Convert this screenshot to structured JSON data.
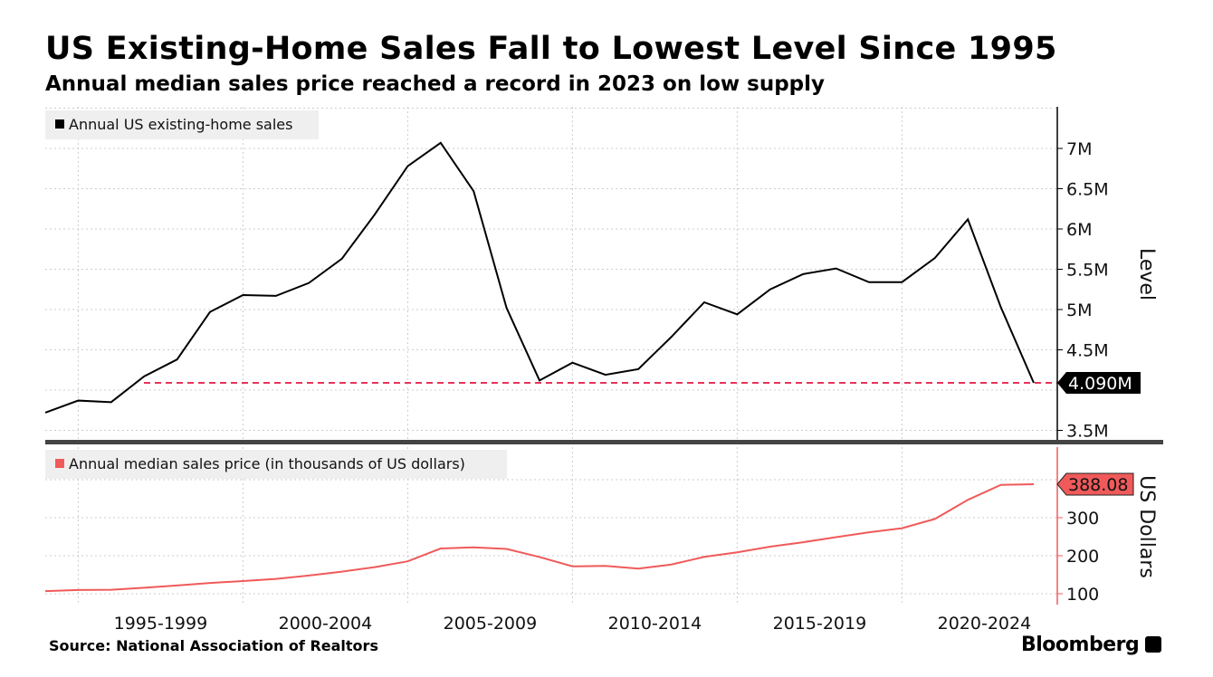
{
  "title": "US Existing-Home Sales Fall to Lowest Level Since 1995",
  "subtitle": "Annual median sales price reached a record in 2023 on low supply",
  "source": "Source: National Association of Realtors",
  "logo": "Bloomberg",
  "colors": {
    "sales": "#000000",
    "price": "#f05a5a",
    "ref": "#e8335a"
  },
  "chart_data": [
    {
      "type": "line",
      "legend": "Annual US existing-home sales",
      "ylabel": "Level",
      "ylim": [
        3.3,
        7.5
      ],
      "yticks": [
        "3.5M",
        "4.5M",
        "5M",
        "5.5M",
        "6M",
        "6.5M",
        "7M"
      ],
      "ytick_values": [
        3.5,
        4.5,
        5,
        5.5,
        6,
        6.5,
        7
      ],
      "last_label": "4.090M",
      "reference_line": 4.09,
      "x": [
        1993,
        1994,
        1995,
        1996,
        1997,
        1998,
        1999,
        2000,
        2001,
        2002,
        2003,
        2004,
        2005,
        2006,
        2007,
        2008,
        2009,
        2010,
        2011,
        2012,
        2013,
        2014,
        2015,
        2016,
        2017,
        2018,
        2019,
        2020,
        2021,
        2022,
        2023
      ],
      "values": [
        3.72,
        3.87,
        3.85,
        4.17,
        4.38,
        4.97,
        5.18,
        5.17,
        5.33,
        5.63,
        6.18,
        6.78,
        7.07,
        6.47,
        5.02,
        4.12,
        4.34,
        4.19,
        4.26,
        4.66,
        5.09,
        4.94,
        5.25,
        5.44,
        5.51,
        5.34,
        5.34,
        5.64,
        6.12,
        5.03,
        4.09
      ]
    },
    {
      "type": "line",
      "legend": "Annual median sales price (in thousands of US dollars)",
      "ylabel": "US Dollars",
      "ylim": [
        80,
        420
      ],
      "yticks": [
        "100",
        "200",
        "300"
      ],
      "ytick_values": [
        100,
        200,
        300
      ],
      "last_label": "388.08",
      "x": [
        1993,
        1994,
        1995,
        1996,
        1997,
        1998,
        1999,
        2000,
        2001,
        2002,
        2003,
        2004,
        2005,
        2006,
        2007,
        2008,
        2009,
        2010,
        2011,
        2012,
        2013,
        2014,
        2015,
        2016,
        2017,
        2018,
        2019,
        2020,
        2021,
        2022,
        2023
      ],
      "values": [
        106.8,
        109.9,
        110.5,
        115.8,
        121.8,
        128.4,
        133.3,
        139.0,
        147.8,
        158.1,
        170.0,
        185.2,
        219.0,
        221.9,
        217.9,
        196.6,
        172.1,
        173.1,
        166.2,
        176.8,
        197.1,
        208.9,
        223.9,
        235.5,
        248.8,
        261.6,
        272.4,
        296.7,
        346.9,
        386.3,
        388.08
      ]
    }
  ],
  "xticks": [
    "1995-1999",
    "2000-2004",
    "2005-2009",
    "2010-2014",
    "2015-2019",
    "2020-2024"
  ]
}
